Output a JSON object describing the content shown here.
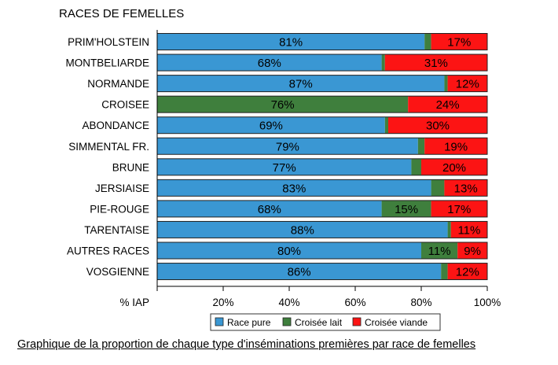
{
  "chart_data": {
    "type": "bar",
    "orientation": "horizontal",
    "stacked": true,
    "title": "RACES DE FEMELLES",
    "xlabel": "% IAP",
    "xlim": [
      0,
      100
    ],
    "xticks": [
      "20%",
      "40%",
      "60%",
      "80%",
      "100%"
    ],
    "categories": [
      "PRIM'HOLSTEIN",
      "MONTBELIARDE",
      "NORMANDE",
      "CROISEE",
      "ABONDANCE",
      "SIMMENTAL FR.",
      "BRUNE",
      "JERSIAISE",
      "PIE-ROUGE",
      "TARENTAISE",
      "AUTRES RACES",
      "VOSGIENNE"
    ],
    "series": [
      {
        "name": "Race pure",
        "color": "#3a97d3",
        "values": [
          81,
          68,
          87,
          0,
          69,
          79,
          77,
          83,
          68,
          88,
          80,
          86
        ],
        "labels": [
          "81%",
          "68%",
          "87%",
          "",
          "69%",
          "79%",
          "77%",
          "83%",
          "68%",
          "88%",
          "80%",
          "86%"
        ]
      },
      {
        "name": "Croisée lait",
        "color": "#3f7f3d",
        "values": [
          2,
          1,
          1,
          76,
          1,
          2,
          3,
          4,
          15,
          1,
          11,
          2
        ],
        "labels": [
          "",
          "",
          "",
          "76%",
          "",
          "",
          "",
          "",
          "15%",
          "",
          "11%",
          ""
        ]
      },
      {
        "name": "Croisée viande",
        "color": "#fc1414",
        "values": [
          17,
          31,
          12,
          24,
          30,
          19,
          20,
          13,
          17,
          11,
          9,
          12
        ],
        "labels": [
          "17%",
          "31%",
          "12%",
          "24%",
          "30%",
          "19%",
          "20%",
          "13%",
          "17%",
          "11%",
          "9%",
          "12%"
        ]
      }
    ],
    "legend_position": "bottom",
    "grid": false
  },
  "caption": "Graphique de la proportion de chaque type d'inséminations premières par race de femelles"
}
